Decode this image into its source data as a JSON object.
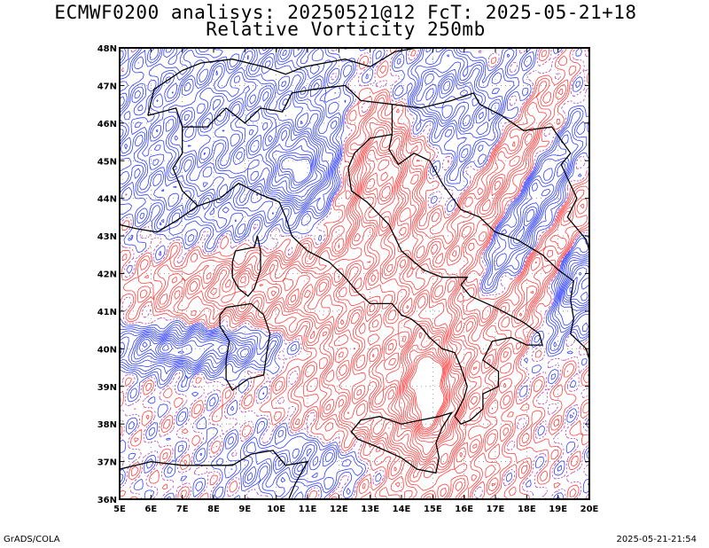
{
  "header": {
    "title_line_1": "ECMWF0200 analisys: 20250521@12 FcT: 2025-05-21+18",
    "title_line_2": "Relative Vorticity 250mb"
  },
  "footer": {
    "credit": "GrADS/COLA",
    "timestamp": "2025-05-21-21:54"
  },
  "map": {
    "field": "relative vorticity",
    "level": "250mb",
    "lon_range": [
      5,
      20
    ],
    "lat_range": [
      36,
      48
    ],
    "x_ticks": [
      "5E",
      "6E",
      "7E",
      "8E",
      "9E",
      "10E",
      "11E",
      "12E",
      "13E",
      "14E",
      "15E",
      "16E",
      "17E",
      "18E",
      "19E",
      "20E"
    ],
    "y_ticks": [
      "36N",
      "37N",
      "38N",
      "39N",
      "40N",
      "41N",
      "42N",
      "43N",
      "44N",
      "45N",
      "46N",
      "47N",
      "48N"
    ],
    "colors": {
      "positive_contours": "#ff4040",
      "negative_contours": "#2f3fff",
      "zero_contour": "#b040b0",
      "coastline": "#000000",
      "grid": "#888888"
    }
  }
}
